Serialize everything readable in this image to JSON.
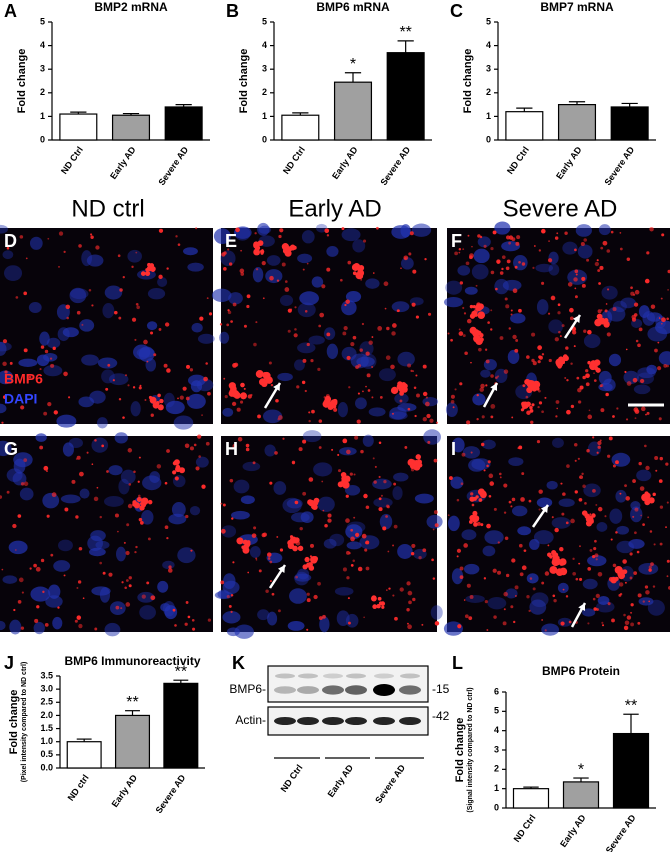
{
  "chart_data": [
    {
      "type": "bar",
      "panel_label": "A",
      "title": "BMP2 mRNA",
      "ylabel": "Fold change",
      "categories": [
        "ND Ctrl",
        "Early AD",
        "Severe AD"
      ],
      "values": [
        1.1,
        1.05,
        1.4
      ],
      "errors": [
        0.08,
        0.07,
        0.1
      ],
      "colors": [
        "#ffffff",
        "#a0a0a0",
        "#000000"
      ],
      "ylim": [
        0,
        5
      ],
      "yticks": [
        0,
        1,
        2,
        3,
        4,
        5
      ]
    },
    {
      "type": "bar",
      "panel_label": "B",
      "title": "BMP6 mRNA",
      "ylabel": "Fold change",
      "categories": [
        "ND Ctrl",
        "Early AD",
        "Severe AD"
      ],
      "values": [
        1.05,
        2.45,
        3.7
      ],
      "errors": [
        0.1,
        0.4,
        0.5
      ],
      "annotations": [
        null,
        "*",
        "**"
      ],
      "colors": [
        "#ffffff",
        "#a0a0a0",
        "#000000"
      ],
      "ylim": [
        0,
        5
      ],
      "yticks": [
        0,
        1,
        2,
        3,
        4,
        5
      ]
    },
    {
      "type": "bar",
      "panel_label": "C",
      "title": "BMP7 mRNA",
      "ylabel": "Fold change",
      "categories": [
        "ND Ctrl",
        "Early AD",
        "Severe AD"
      ],
      "values": [
        1.2,
        1.5,
        1.4
      ],
      "errors": [
        0.15,
        0.12,
        0.15
      ],
      "colors": [
        "#ffffff",
        "#a0a0a0",
        "#000000"
      ],
      "ylim": [
        0,
        5
      ],
      "yticks": [
        0,
        1,
        2,
        3,
        4,
        5
      ]
    },
    {
      "type": "bar",
      "panel_label": "J",
      "title": "BMP6 Immunoreactivity",
      "ylabel": "Fold change",
      "ylabel_note": "(Pixel intensity compared to ND ctrl)",
      "categories": [
        "ND ctrl",
        "Early AD",
        "Severe AD"
      ],
      "values": [
        1.0,
        2.0,
        3.22
      ],
      "errors": [
        0.1,
        0.18,
        0.12
      ],
      "annotations": [
        null,
        "**",
        "**"
      ],
      "colors": [
        "#ffffff",
        "#a0a0a0",
        "#000000"
      ],
      "ylim": [
        0,
        3.5
      ],
      "yticks": [
        {
          "value": 0,
          "label": "0.0"
        },
        0.5,
        {
          "value": 1,
          "label": "1.0"
        },
        1.5,
        {
          "value": 2,
          "label": "2.0"
        },
        2.5,
        {
          "value": 3,
          "label": "3.0"
        },
        3.5
      ]
    },
    {
      "type": "bar",
      "panel_label": "L",
      "title": "BMP6 Protein",
      "ylabel": "Fold change",
      "ylabel_note": "(Signal intensity compared to ND ctrl)",
      "categories": [
        "ND Ctrl",
        "Early AD",
        "Severe AD"
      ],
      "values": [
        1.0,
        1.35,
        3.85
      ],
      "errors": [
        0.08,
        0.2,
        1.0
      ],
      "annotations": [
        null,
        "*",
        "**"
      ],
      "colors": [
        "#ffffff",
        "#a0a0a0",
        "#000000"
      ],
      "ylim": [
        0,
        6
      ],
      "yticks": [
        0,
        1,
        2,
        3,
        4,
        5,
        6
      ]
    }
  ],
  "columns": [
    "ND ctrl",
    "Early AD",
    "Severe AD"
  ],
  "micrographs": [
    "D",
    "E",
    "F",
    "G",
    "H",
    "I"
  ],
  "stains": [
    {
      "name": "BMP6",
      "color": "#ff2a2a"
    },
    {
      "name": "DAPI",
      "color": "#3346ff"
    }
  ],
  "blot": {
    "panel_label": "K",
    "bands": [
      "BMP6-",
      "Actin-"
    ],
    "markers": [
      "-15",
      "-42"
    ],
    "groups": [
      "ND Ctrl",
      "Early AD",
      "Severe AD"
    ]
  }
}
